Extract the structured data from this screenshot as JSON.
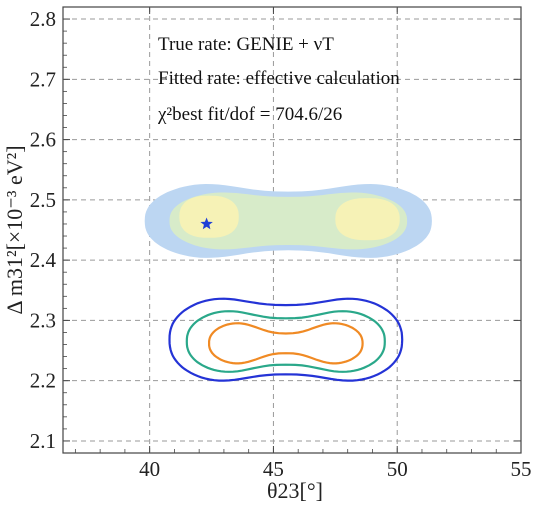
{
  "chart_data": {
    "type": "contour",
    "xlabel": "θ23[°]",
    "ylabel": "Δ m31²[×10⁻³ eV²]",
    "xlim": [
      36.5,
      55
    ],
    "ylim": [
      2.08,
      2.82
    ],
    "xticks": [
      40,
      45,
      50,
      55
    ],
    "yticks": [
      2.1,
      2.2,
      2.3,
      2.4,
      2.5,
      2.6,
      2.7,
      2.8
    ],
    "grid": true,
    "grid_style": "dashed",
    "annotations": [
      "True rate: GENIE + νT",
      "Fitted rate: effective calculation",
      "χ²best fit/dof = 704.6/26"
    ],
    "best_fit": {
      "x": 42.3,
      "y": 2.46,
      "marker": "star",
      "color": "#1f3fd6"
    },
    "filled_regions": [
      {
        "level": "outer",
        "color": "#bcd6f2",
        "cx": 45.6,
        "cy": 2.465,
        "halfw": 5.8,
        "halfh": 0.075,
        "pinch": 0.35
      },
      {
        "level": "middle",
        "color": "#d7ebc9",
        "cx": 45.6,
        "cy": 2.465,
        "halfw": 4.8,
        "halfh": 0.057,
        "pinch": 0.3
      },
      {
        "level": "inner-left",
        "color": "#f6f2b6",
        "cx": 42.4,
        "cy": 2.472,
        "halfw": 1.2,
        "halfh": 0.035
      },
      {
        "level": "inner-right",
        "color": "#f6f2b6",
        "cx": 48.8,
        "cy": 2.468,
        "halfw": 1.3,
        "halfh": 0.035
      }
    ],
    "contour_lines": [
      {
        "level": "outer",
        "color": "#2433d6",
        "cx": 45.5,
        "cy": 2.268,
        "halfw": 4.7,
        "halfh": 0.082,
        "pinch": 0.3
      },
      {
        "level": "middle",
        "color": "#2aa88a",
        "cx": 45.5,
        "cy": 2.265,
        "halfw": 4.0,
        "halfh": 0.062,
        "pinch": 0.38
      },
      {
        "level": "inner",
        "color": "#f08a24",
        "cx": 45.5,
        "cy": 2.262,
        "halfw": 3.1,
        "halfh": 0.043,
        "pinch": 0.62
      }
    ]
  }
}
